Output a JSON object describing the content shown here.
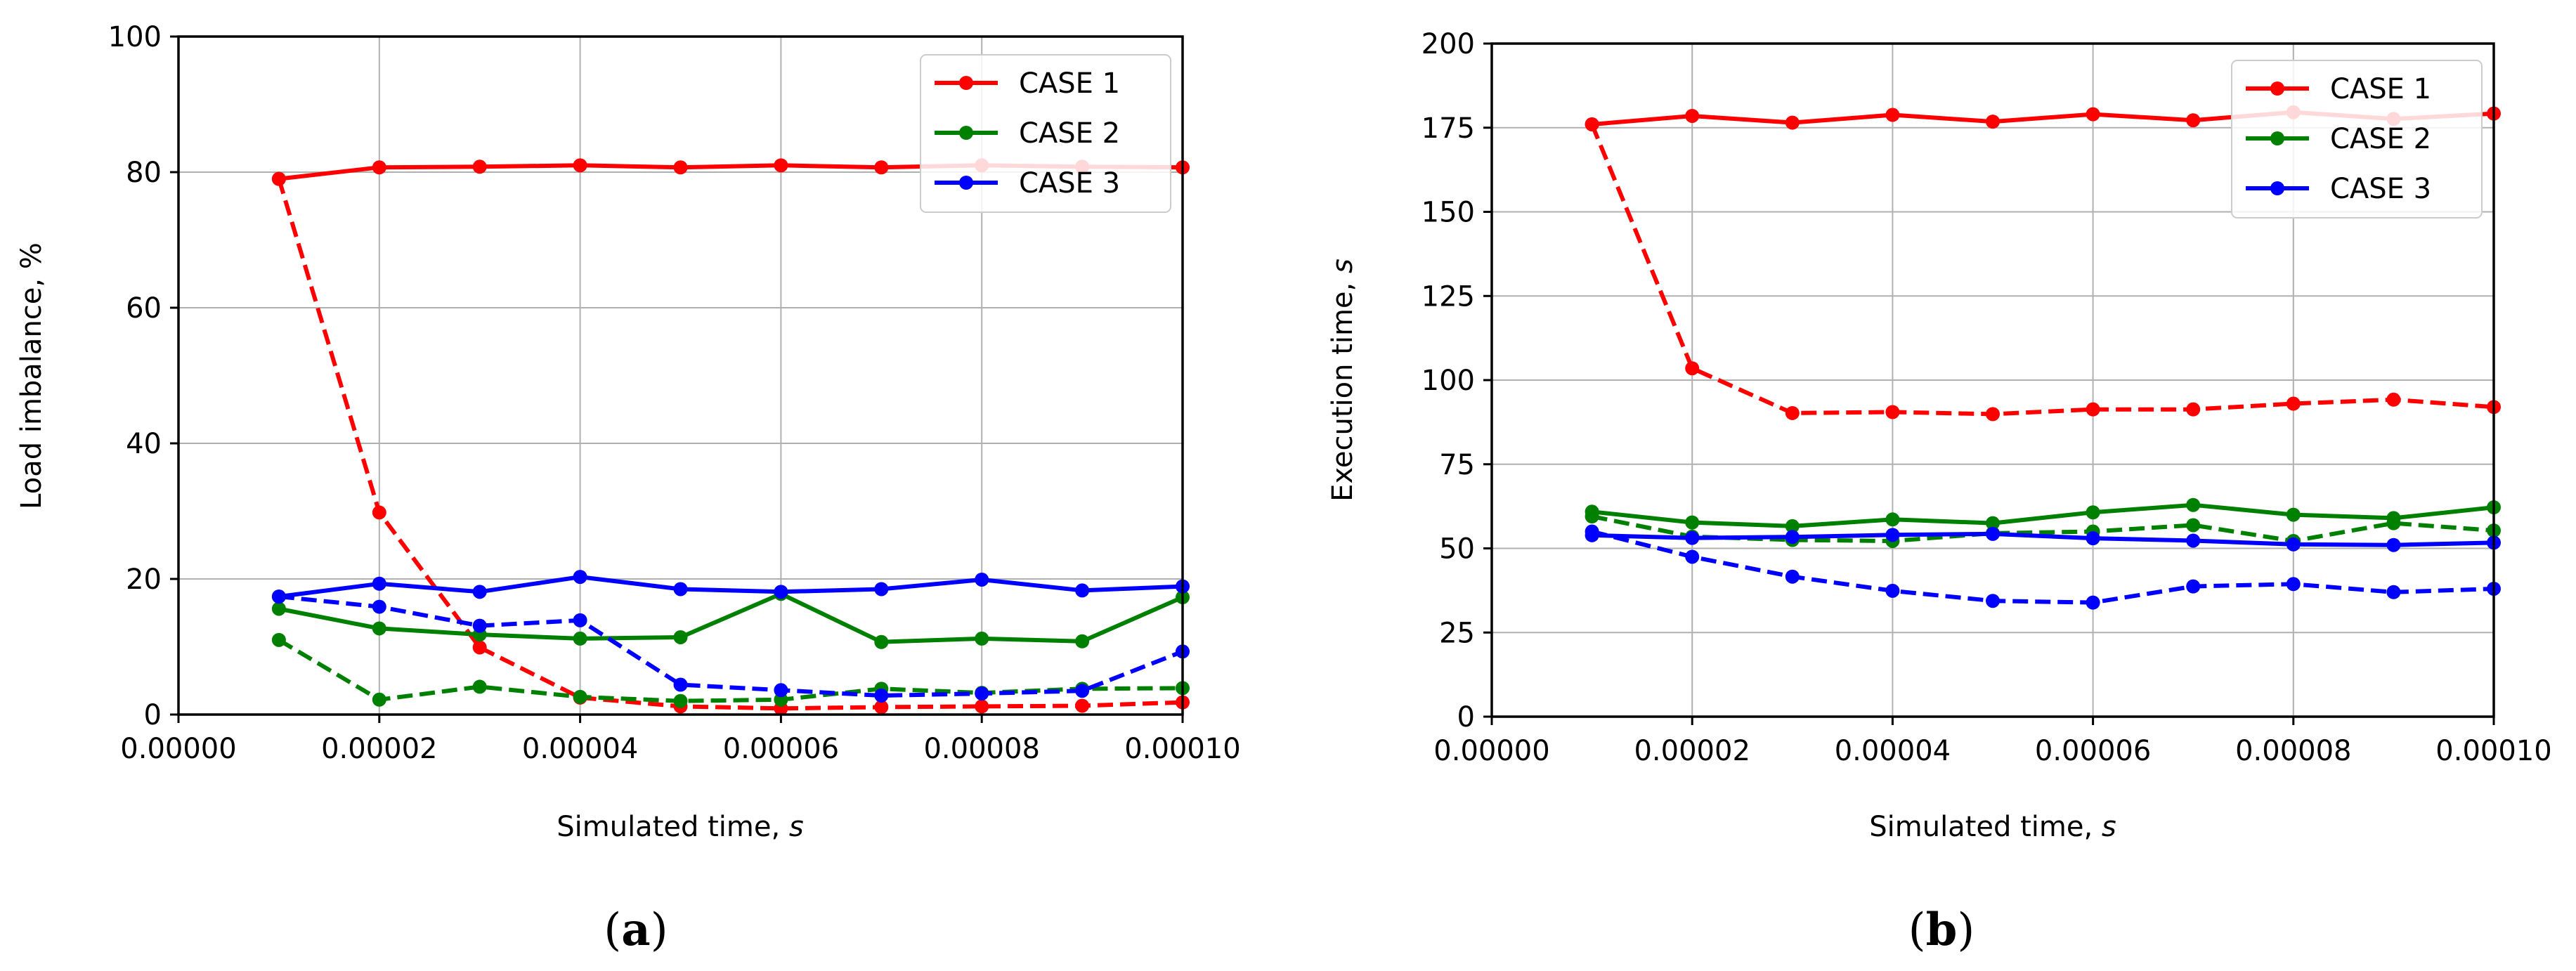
{
  "chart_data": [
    {
      "type": "line",
      "panel_label": "(a)",
      "panel_letter": "a",
      "xlabel": "Simulated time, ",
      "xlabel_unit": "s",
      "ylabel": "Load imbalance, %",
      "xlim": [
        0,
        0.0001
      ],
      "ylim": [
        0,
        100
      ],
      "xticks": [
        0,
        2e-05,
        4e-05,
        6e-05,
        8e-05,
        0.0001
      ],
      "xtick_labels": [
        "0.00000",
        "0.00002",
        "0.00004",
        "0.00006",
        "0.00008",
        "0.00010"
      ],
      "yticks": [
        0,
        20,
        40,
        60,
        80,
        100
      ],
      "ytick_labels": [
        "0",
        "20",
        "40",
        "60",
        "80",
        "100"
      ],
      "grid": true,
      "legend_position": "top-right",
      "x": [
        1e-05,
        2e-05,
        3e-05,
        4e-05,
        5e-05,
        6e-05,
        7e-05,
        8e-05,
        9e-05,
        0.0001
      ],
      "series": [
        {
          "name": "CASE 1",
          "color": "#ff0000",
          "style": "solid",
          "values": [
            79,
            80.7,
            80.8,
            81,
            80.7,
            81,
            80.7,
            81,
            80.8,
            80.7
          ]
        },
        {
          "name": "CASE 1",
          "color": "#ff0000",
          "style": "dashed",
          "values": [
            79,
            29.8,
            9.9,
            2.5,
            1.2,
            0.9,
            1.1,
            1.2,
            1.3,
            1.8
          ]
        },
        {
          "name": "CASE 2",
          "color": "#008000",
          "style": "solid",
          "values": [
            15.6,
            12.7,
            11.8,
            11.2,
            11.4,
            17.8,
            10.7,
            11.2,
            10.8,
            17.3
          ]
        },
        {
          "name": "CASE 2",
          "color": "#008000",
          "style": "dashed",
          "values": [
            11,
            2.2,
            4.1,
            2.6,
            2,
            2.2,
            3.8,
            3.2,
            3.8,
            3.9
          ]
        },
        {
          "name": "CASE 3",
          "color": "#0000ff",
          "style": "solid",
          "values": [
            17.4,
            19.3,
            18.1,
            20.3,
            18.5,
            18.1,
            18.5,
            19.9,
            18.3,
            18.9
          ]
        },
        {
          "name": "CASE 3",
          "color": "#0000ff",
          "style": "dashed",
          "values": [
            17.4,
            15.9,
            13.1,
            13.9,
            4.4,
            3.6,
            2.8,
            3.1,
            3.5,
            9.3
          ]
        }
      ],
      "legend": [
        {
          "label": "CASE 1",
          "color": "#ff0000"
        },
        {
          "label": "CASE 2",
          "color": "#008000"
        },
        {
          "label": "CASE 3",
          "color": "#0000ff"
        }
      ]
    },
    {
      "type": "line",
      "panel_label": "(b)",
      "panel_letter": "b",
      "xlabel": "Simulated time, ",
      "xlabel_unit": "s",
      "ylabel": "Execution time, ",
      "ylabel_unit": "s",
      "xlim": [
        0,
        0.0001
      ],
      "ylim": [
        0,
        200
      ],
      "xticks": [
        0,
        2e-05,
        4e-05,
        6e-05,
        8e-05,
        0.0001
      ],
      "xtick_labels": [
        "0.00000",
        "0.00002",
        "0.00004",
        "0.00006",
        "0.00008",
        "0.00010"
      ],
      "yticks": [
        0,
        25,
        50,
        75,
        100,
        125,
        150,
        175,
        200
      ],
      "ytick_labels": [
        "0",
        "25",
        "50",
        "75",
        "100",
        "125",
        "150",
        "175",
        "200"
      ],
      "grid": true,
      "legend_position": "top-right",
      "x": [
        1e-05,
        2e-05,
        3e-05,
        4e-05,
        5e-05,
        6e-05,
        7e-05,
        8e-05,
        9e-05,
        0.0001
      ],
      "series": [
        {
          "name": "CASE 1",
          "color": "#ff0000",
          "style": "solid",
          "values": [
            176,
            178.5,
            176.5,
            178.8,
            176.8,
            179,
            177.2,
            179.6,
            177.6,
            179.2
          ]
        },
        {
          "name": "CASE 1",
          "color": "#ff0000",
          "style": "dashed",
          "values": [
            176,
            103.5,
            90.2,
            90.5,
            89.9,
            91.3,
            91.3,
            93,
            94.2,
            92
          ]
        },
        {
          "name": "CASE 2",
          "color": "#008000",
          "style": "solid",
          "values": [
            60.9,
            57.7,
            56.6,
            58.6,
            57.5,
            60.7,
            62.9,
            60,
            59,
            62.2
          ]
        },
        {
          "name": "CASE 2",
          "color": "#008000",
          "style": "dashed",
          "values": [
            59.5,
            53.5,
            52.5,
            52.2,
            54.5,
            55,
            56.9,
            52.2,
            57.5,
            55.3
          ]
        },
        {
          "name": "CASE 3",
          "color": "#0000ff",
          "style": "solid",
          "values": [
            53.9,
            53.1,
            53.4,
            54,
            54.3,
            53,
            52.3,
            51.2,
            51,
            51.7
          ]
        },
        {
          "name": "CASE 3",
          "color": "#0000ff",
          "style": "dashed",
          "values": [
            55,
            47.5,
            41.6,
            37.4,
            34.4,
            33.9,
            38.7,
            39.4,
            37,
            38
          ]
        }
      ],
      "legend": [
        {
          "label": "CASE 1",
          "color": "#ff0000"
        },
        {
          "label": "CASE 2",
          "color": "#008000"
        },
        {
          "label": "CASE 3",
          "color": "#0000ff"
        }
      ]
    }
  ]
}
